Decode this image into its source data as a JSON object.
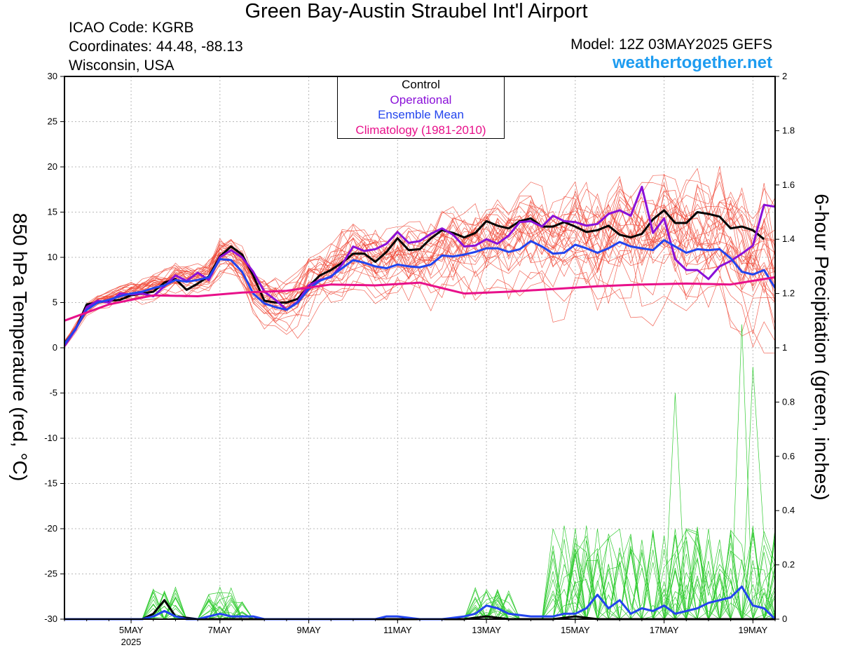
{
  "title": "Green Bay-Austin Straubel Int'l Airport",
  "station": {
    "icao_label": "ICAO Code: KGRB",
    "coords_label": "Coordinates: 44.48, -88.13",
    "region_label": "Wisconsin, USA"
  },
  "model_label": "Model: 12Z 03MAY2025 GEFS",
  "site_label": "weathertogether.net",
  "colors": {
    "members": "#f04a3a",
    "control": "#000000",
    "operational": "#8a10d8",
    "mean": "#2244ee",
    "climatology": "#e8108a",
    "precip_members": "#33cc33",
    "site": "#1e9cf0"
  },
  "chart_data": {
    "type": "line",
    "xlabel": "",
    "ylabel": "850 hPa Temperature (red, °C)",
    "y2label": "6-hour Precipitation (green, inches)",
    "legend": {
      "position": "top-center",
      "entries": [
        {
          "label": "Control",
          "color": "#000000"
        },
        {
          "label": "Operational",
          "color": "#8a10d8"
        },
        {
          "label": "Ensemble Mean",
          "color": "#2244ee"
        },
        {
          "label": "Climatology (1981-2010)",
          "color": "#e8108a"
        }
      ]
    },
    "x_unit": "days since 2025-05-03 12Z",
    "xlim": [
      0,
      16
    ],
    "ylim": [
      -30,
      30
    ],
    "y2lim": [
      0,
      2
    ],
    "x_ticks": [
      {
        "x": 1.5,
        "label": "5MAY",
        "sublabel": "2025"
      },
      {
        "x": 3.5,
        "label": "7MAY"
      },
      {
        "x": 5.5,
        "label": "9MAY"
      },
      {
        "x": 7.5,
        "label": "11MAY"
      },
      {
        "x": 9.5,
        "label": "13MAY"
      },
      {
        "x": 11.5,
        "label": "15MAY"
      },
      {
        "x": 13.5,
        "label": "17MAY"
      },
      {
        "x": 15.5,
        "label": "19MAY"
      }
    ],
    "y_ticks": [
      30,
      25,
      20,
      15,
      10,
      5,
      0,
      -5,
      -10,
      -15,
      -20,
      -25,
      -30
    ],
    "y2_ticks": [
      2,
      1.8,
      1.6,
      1.4,
      1.2,
      1,
      0.8,
      0.6,
      0.4,
      0.2,
      0
    ],
    "series": [
      {
        "name": "Control",
        "axis": "left",
        "points": [
          [
            0,
            0.5
          ],
          [
            0.25,
            2
          ],
          [
            0.5,
            4.8
          ],
          [
            0.75,
            5
          ],
          [
            1,
            5.2
          ],
          [
            1.25,
            5.3
          ],
          [
            1.5,
            5.8
          ],
          [
            1.75,
            6
          ],
          [
            2,
            6.2
          ],
          [
            2.25,
            7.2
          ],
          [
            2.5,
            7.6
          ],
          [
            2.75,
            6.4
          ],
          [
            3,
            7.1
          ],
          [
            3.25,
            7.9
          ],
          [
            3.5,
            10.1
          ],
          [
            3.75,
            11.2
          ],
          [
            4,
            10.3
          ],
          [
            4.25,
            8
          ],
          [
            4.5,
            5.2
          ],
          [
            4.75,
            5
          ],
          [
            5,
            5
          ],
          [
            5.25,
            5.4
          ],
          [
            5.5,
            6.8
          ],
          [
            5.75,
            8
          ],
          [
            6,
            8.6
          ],
          [
            6.25,
            9.4
          ],
          [
            6.5,
            10.4
          ],
          [
            6.75,
            10.4
          ],
          [
            7,
            9.5
          ],
          [
            7.25,
            10.6
          ],
          [
            7.5,
            12.1
          ],
          [
            7.75,
            10.8
          ],
          [
            8,
            10.9
          ],
          [
            8.25,
            12.1
          ],
          [
            8.5,
            13
          ],
          [
            8.75,
            12.7
          ],
          [
            9,
            12.2
          ],
          [
            9.25,
            12.7
          ],
          [
            9.5,
            14
          ],
          [
            9.75,
            13.5
          ],
          [
            10,
            13.2
          ],
          [
            10.25,
            14
          ],
          [
            10.5,
            14.3
          ],
          [
            10.75,
            13.4
          ],
          [
            11,
            13.4
          ],
          [
            11.25,
            13.9
          ],
          [
            11.5,
            13.4
          ],
          [
            11.75,
            12.8
          ],
          [
            12,
            13
          ],
          [
            12.25,
            13.5
          ],
          [
            12.5,
            12.5
          ],
          [
            12.75,
            12.2
          ],
          [
            13,
            12.6
          ],
          [
            13.25,
            14.2
          ],
          [
            13.5,
            15.2
          ],
          [
            13.75,
            13.8
          ],
          [
            14,
            13.8
          ],
          [
            14.25,
            15
          ],
          [
            14.5,
            14.8
          ],
          [
            14.75,
            14.5
          ],
          [
            15,
            13.2
          ],
          [
            15.25,
            13.4
          ],
          [
            15.5,
            13
          ],
          [
            15.75,
            12
          ]
        ]
      },
      {
        "name": "Operational",
        "axis": "left",
        "points": [
          [
            0,
            0.2
          ],
          [
            0.25,
            2
          ],
          [
            0.5,
            4.5
          ],
          [
            0.75,
            5.2
          ],
          [
            1,
            5
          ],
          [
            1.25,
            6
          ],
          [
            1.5,
            5.9
          ],
          [
            1.75,
            6
          ],
          [
            2,
            5.7
          ],
          [
            2.25,
            6.8
          ],
          [
            2.5,
            8
          ],
          [
            2.75,
            7.4
          ],
          [
            3,
            8.3
          ],
          [
            3.25,
            7.5
          ],
          [
            3.5,
            10
          ],
          [
            3.75,
            10.8
          ],
          [
            4,
            10
          ],
          [
            4.25,
            8.4
          ],
          [
            4.5,
            6.2
          ],
          [
            4.75,
            5.3
          ],
          [
            5,
            4.2
          ],
          [
            5.25,
            5.1
          ],
          [
            5.5,
            6.9
          ],
          [
            5.75,
            7.5
          ],
          [
            6,
            7.8
          ],
          [
            6.25,
            9.2
          ],
          [
            6.5,
            11.2
          ],
          [
            6.75,
            10.7
          ],
          [
            7,
            10.9
          ],
          [
            7.25,
            11.5
          ],
          [
            7.5,
            12.8
          ],
          [
            7.75,
            11.6
          ],
          [
            8,
            11.8
          ],
          [
            8.25,
            12.6
          ],
          [
            8.5,
            13.2
          ],
          [
            8.75,
            12.5
          ],
          [
            9,
            11.2
          ],
          [
            9.25,
            11.3
          ],
          [
            9.5,
            12
          ],
          [
            9.75,
            11.5
          ],
          [
            10,
            12.4
          ],
          [
            10.25,
            13.9
          ],
          [
            10.5,
            14
          ],
          [
            10.75,
            13.4
          ],
          [
            11,
            14.6
          ],
          [
            11.25,
            14
          ],
          [
            11.5,
            13.9
          ],
          [
            11.75,
            13.5
          ],
          [
            12,
            13.7
          ],
          [
            12.25,
            14.8
          ],
          [
            12.5,
            15.2
          ],
          [
            12.75,
            14.6
          ],
          [
            13,
            17.8
          ],
          [
            13.25,
            12.7
          ],
          [
            13.5,
            14.3
          ],
          [
            13.75,
            9.8
          ],
          [
            14,
            8.6
          ],
          [
            14.25,
            8.6
          ],
          [
            14.5,
            7.6
          ],
          [
            14.75,
            9
          ],
          [
            15,
            9.6
          ],
          [
            15.25,
            10.4
          ],
          [
            15.5,
            11.3
          ],
          [
            15.75,
            15.8
          ],
          [
            16,
            15.6
          ]
        ]
      },
      {
        "name": "Ensemble Mean",
        "axis": "left",
        "points": [
          [
            0,
            0.4
          ],
          [
            0.25,
            2.1
          ],
          [
            0.5,
            4.2
          ],
          [
            0.75,
            5
          ],
          [
            1,
            5.3
          ],
          [
            1.25,
            5.7
          ],
          [
            1.5,
            6
          ],
          [
            1.75,
            6.2
          ],
          [
            2,
            6.6
          ],
          [
            2.25,
            6.9
          ],
          [
            2.5,
            7.5
          ],
          [
            2.75,
            7.3
          ],
          [
            3,
            7.5
          ],
          [
            3.25,
            7.8
          ],
          [
            3.5,
            9.8
          ],
          [
            3.75,
            9.7
          ],
          [
            4,
            8.4
          ],
          [
            4.25,
            6
          ],
          [
            4.5,
            4.9
          ],
          [
            4.75,
            4.5
          ],
          [
            5,
            4.2
          ],
          [
            5.25,
            5
          ],
          [
            5.5,
            6.5
          ],
          [
            5.75,
            7.4
          ],
          [
            6,
            7.9
          ],
          [
            6.25,
            8.8
          ],
          [
            6.5,
            9.7
          ],
          [
            6.75,
            9.4
          ],
          [
            7,
            9
          ],
          [
            7.25,
            8.8
          ],
          [
            7.5,
            9.2
          ],
          [
            7.75,
            9
          ],
          [
            8,
            8.9
          ],
          [
            8.25,
            9.2
          ],
          [
            8.5,
            10.2
          ],
          [
            8.75,
            10.1
          ],
          [
            9,
            10.3
          ],
          [
            9.25,
            10.6
          ],
          [
            9.5,
            11
          ],
          [
            9.75,
            11
          ],
          [
            10,
            10.6
          ],
          [
            10.25,
            10.9
          ],
          [
            10.5,
            11.8
          ],
          [
            10.75,
            11.2
          ],
          [
            11,
            10.4
          ],
          [
            11.25,
            10.5
          ],
          [
            11.5,
            11.4
          ],
          [
            11.75,
            11
          ],
          [
            12,
            10.5
          ],
          [
            12.25,
            11
          ],
          [
            12.5,
            11.7
          ],
          [
            12.75,
            11.2
          ],
          [
            13,
            11
          ],
          [
            13.25,
            10.8
          ],
          [
            13.5,
            11.9
          ],
          [
            13.75,
            11.2
          ],
          [
            14,
            10.5
          ],
          [
            14.25,
            10.9
          ],
          [
            14.5,
            10.8
          ],
          [
            14.75,
            10.9
          ],
          [
            15,
            9.9
          ],
          [
            15.25,
            8.4
          ],
          [
            15.5,
            8.1
          ],
          [
            15.75,
            8.6
          ],
          [
            16,
            6.6
          ]
        ]
      },
      {
        "name": "Climatology (1981-2010)",
        "axis": "left",
        "points": [
          [
            0,
            3
          ],
          [
            1,
            4.8
          ],
          [
            2,
            5.8
          ],
          [
            3,
            5.7
          ],
          [
            4,
            6.1
          ],
          [
            5,
            6.3
          ],
          [
            6,
            7
          ],
          [
            7,
            6.9
          ],
          [
            8,
            7.2
          ],
          [
            9,
            6
          ],
          [
            10,
            6.2
          ],
          [
            11,
            6.5
          ],
          [
            12,
            6.8
          ],
          [
            13,
            7
          ],
          [
            14,
            7.1
          ],
          [
            15,
            7
          ],
          [
            16,
            7.8
          ]
        ]
      },
      {
        "name": "Control",
        "axis": "right",
        "points": [
          [
            0,
            0
          ],
          [
            1,
            0
          ],
          [
            1.75,
            0
          ],
          [
            2,
            0.02
          ],
          [
            2.25,
            0.07
          ],
          [
            2.5,
            0.01
          ],
          [
            3,
            0
          ],
          [
            4,
            0
          ],
          [
            5,
            0
          ],
          [
            6,
            0
          ],
          [
            7,
            0
          ],
          [
            8,
            0
          ],
          [
            9,
            0
          ],
          [
            9.5,
            0.01
          ],
          [
            10,
            0
          ],
          [
            11,
            0
          ],
          [
            11.5,
            0.01
          ],
          [
            12,
            0
          ],
          [
            13,
            0
          ],
          [
            14,
            0
          ],
          [
            15,
            0
          ],
          [
            16,
            0
          ]
        ]
      },
      {
        "name": "Ensemble Mean",
        "axis": "right",
        "points": [
          [
            0,
            0
          ],
          [
            1,
            0
          ],
          [
            1.75,
            0
          ],
          [
            2,
            0.01
          ],
          [
            2.25,
            0.03
          ],
          [
            2.5,
            0.01
          ],
          [
            2.75,
            0
          ],
          [
            3,
            0
          ],
          [
            3.25,
            0.01
          ],
          [
            3.5,
            0.02
          ],
          [
            3.75,
            0.01
          ],
          [
            4,
            0.01
          ],
          [
            4.25,
            0.01
          ],
          [
            4.5,
            0
          ],
          [
            5,
            0
          ],
          [
            6,
            0
          ],
          [
            7,
            0
          ],
          [
            7.25,
            0.01
          ],
          [
            7.5,
            0.01
          ],
          [
            8,
            0
          ],
          [
            8.5,
            0
          ],
          [
            9,
            0.01
          ],
          [
            9.25,
            0.02
          ],
          [
            9.5,
            0.05
          ],
          [
            9.75,
            0.04
          ],
          [
            10,
            0.02
          ],
          [
            10.5,
            0.01
          ],
          [
            11,
            0.01
          ],
          [
            11.25,
            0.02
          ],
          [
            11.5,
            0.02
          ],
          [
            11.75,
            0.04
          ],
          [
            12,
            0.09
          ],
          [
            12.25,
            0.04
          ],
          [
            12.5,
            0.07
          ],
          [
            12.75,
            0.02
          ],
          [
            13,
            0.04
          ],
          [
            13.25,
            0.03
          ],
          [
            13.5,
            0.05
          ],
          [
            13.75,
            0.02
          ],
          [
            14,
            0.03
          ],
          [
            14.25,
            0.04
          ],
          [
            14.5,
            0.06
          ],
          [
            14.75,
            0.07
          ],
          [
            15,
            0.08
          ],
          [
            15.25,
            0.12
          ],
          [
            15.5,
            0.05
          ],
          [
            15.75,
            0.04
          ],
          [
            16,
            0
          ]
        ]
      }
    ]
  }
}
